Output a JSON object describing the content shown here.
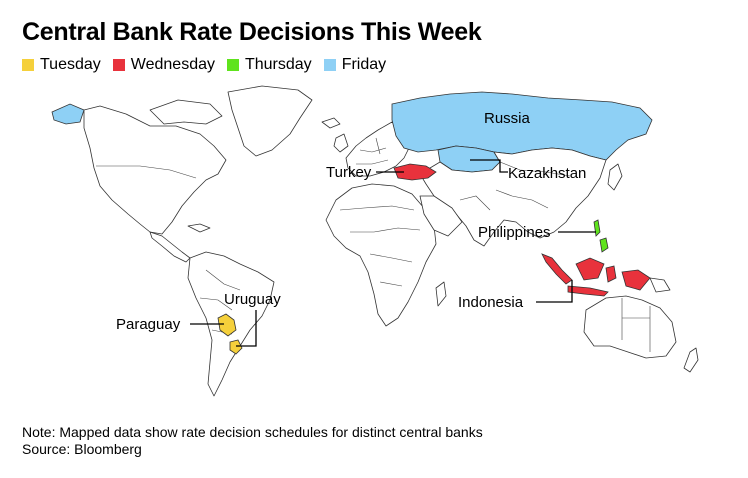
{
  "title": "Central Bank Rate Decisions This Week",
  "legend": [
    {
      "label": "Tuesday",
      "color": "#f5d03b"
    },
    {
      "label": "Wednesday",
      "color": "#e8323c"
    },
    {
      "label": "Thursday",
      "color": "#5fe31d"
    },
    {
      "label": "Friday",
      "color": "#8ed0f5"
    }
  ],
  "countries": {
    "russia": {
      "label": "Russia",
      "day": "Friday"
    },
    "kazakhstan": {
      "label": "Kazakhstan",
      "day": "Friday"
    },
    "turkey": {
      "label": "Turkey",
      "day": "Wednesday"
    },
    "philippines": {
      "label": "Philippines",
      "day": "Thursday"
    },
    "indonesia": {
      "label": "Indonesia",
      "day": "Wednesday"
    },
    "paraguay": {
      "label": "Paraguay",
      "day": "Tuesday"
    },
    "uruguay": {
      "label": "Uruguay",
      "day": "Tuesday"
    }
  },
  "note": "Note: Mapped data show rate decision schedules for distinct central banks",
  "source": "Source: Bloomberg"
}
